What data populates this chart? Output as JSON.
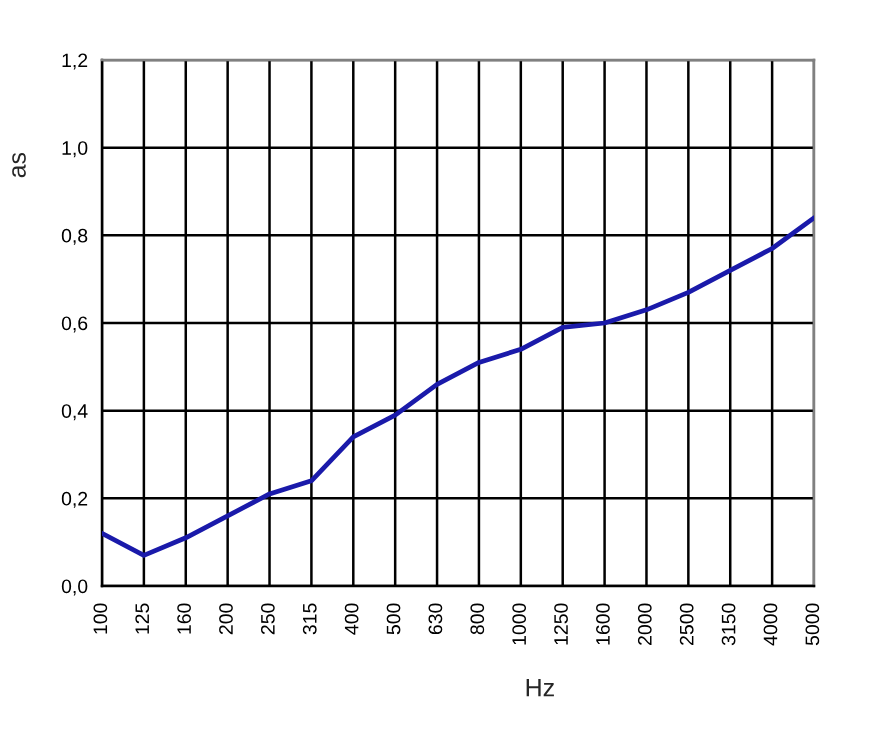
{
  "chart_data": {
    "type": "line",
    "xlabel": "Hz",
    "ylabel": "as",
    "categories": [
      "100",
      "125",
      "160",
      "200",
      "250",
      "315",
      "400",
      "500",
      "630",
      "800",
      "1000",
      "1250",
      "1600",
      "2000",
      "2500",
      "3150",
      "4000",
      "5000"
    ],
    "series": [
      {
        "color": "#1a1aaa",
        "values": [
          0.12,
          0.07,
          0.11,
          0.16,
          0.21,
          0.24,
          0.34,
          0.39,
          0.46,
          0.51,
          0.54,
          0.59,
          0.6,
          0.63,
          0.67,
          0.72,
          0.77,
          0.84
        ]
      }
    ],
    "ylim": [
      0,
      1.2
    ],
    "yticks": [
      {
        "value": 0,
        "label": "0,0"
      },
      {
        "value": 0.2,
        "label": "0,2"
      },
      {
        "value": 0.4,
        "label": "0,4"
      },
      {
        "value": 0.6,
        "label": "0,6"
      },
      {
        "value": 0.8,
        "label": "0,8"
      },
      {
        "value": 1.0,
        "label": "1,0"
      },
      {
        "value": 1.2,
        "label": "1,2"
      }
    ],
    "grid": true,
    "line_style": "solid"
  }
}
